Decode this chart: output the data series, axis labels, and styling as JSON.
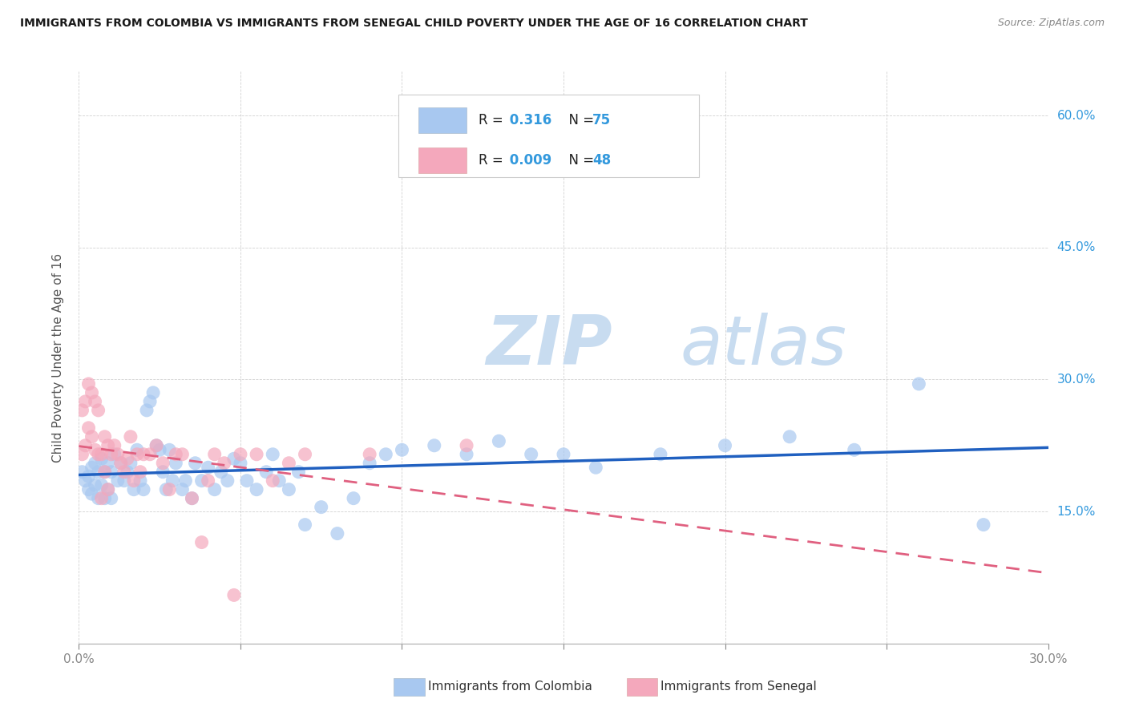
{
  "title": "IMMIGRANTS FROM COLOMBIA VS IMMIGRANTS FROM SENEGAL CHILD POVERTY UNDER THE AGE OF 16 CORRELATION CHART",
  "source": "Source: ZipAtlas.com",
  "ylabel": "Child Poverty Under the Age of 16",
  "xlim": [
    0.0,
    0.3
  ],
  "ylim": [
    0.0,
    0.65
  ],
  "yticks": [
    0.0,
    0.15,
    0.3,
    0.45,
    0.6
  ],
  "ytick_labels": [
    "",
    "15.0%",
    "30.0%",
    "45.0%",
    "60.0%"
  ],
  "xticks": [
    0.0,
    0.05,
    0.1,
    0.15,
    0.2,
    0.25,
    0.3
  ],
  "colombia_color": "#A8C8F0",
  "senegal_color": "#F4A8BC",
  "colombia_R": 0.316,
  "colombia_N": 75,
  "senegal_R": 0.009,
  "senegal_N": 48,
  "colombia_line_color": "#2060C0",
  "senegal_line_color": "#E06080",
  "watermark_zip": "ZIP",
  "watermark_atlas": "atlas",
  "legend_label_col": "Immigrants from Colombia",
  "legend_label_sen": "Immigrants from Senegal",
  "colombia_x": [
    0.001,
    0.002,
    0.003,
    0.003,
    0.004,
    0.004,
    0.005,
    0.005,
    0.006,
    0.006,
    0.007,
    0.007,
    0.008,
    0.008,
    0.009,
    0.009,
    0.01,
    0.01,
    0.011,
    0.012,
    0.013,
    0.014,
    0.015,
    0.016,
    0.017,
    0.018,
    0.019,
    0.02,
    0.021,
    0.022,
    0.023,
    0.024,
    0.025,
    0.026,
    0.027,
    0.028,
    0.029,
    0.03,
    0.032,
    0.033,
    0.035,
    0.036,
    0.038,
    0.04,
    0.042,
    0.044,
    0.046,
    0.048,
    0.05,
    0.052,
    0.055,
    0.058,
    0.06,
    0.062,
    0.065,
    0.068,
    0.07,
    0.075,
    0.08,
    0.085,
    0.09,
    0.095,
    0.1,
    0.11,
    0.12,
    0.13,
    0.14,
    0.15,
    0.16,
    0.18,
    0.2,
    0.22,
    0.24,
    0.26,
    0.28
  ],
  "colombia_y": [
    0.195,
    0.185,
    0.19,
    0.175,
    0.2,
    0.17,
    0.205,
    0.18,
    0.195,
    0.165,
    0.21,
    0.18,
    0.195,
    0.165,
    0.205,
    0.175,
    0.195,
    0.165,
    0.215,
    0.185,
    0.205,
    0.185,
    0.195,
    0.205,
    0.175,
    0.22,
    0.185,
    0.175,
    0.265,
    0.275,
    0.285,
    0.225,
    0.22,
    0.195,
    0.175,
    0.22,
    0.185,
    0.205,
    0.175,
    0.185,
    0.165,
    0.205,
    0.185,
    0.2,
    0.175,
    0.195,
    0.185,
    0.21,
    0.205,
    0.185,
    0.175,
    0.195,
    0.215,
    0.185,
    0.175,
    0.195,
    0.135,
    0.155,
    0.125,
    0.165,
    0.205,
    0.215,
    0.22,
    0.225,
    0.215,
    0.23,
    0.215,
    0.215,
    0.2,
    0.215,
    0.225,
    0.235,
    0.22,
    0.295,
    0.135
  ],
  "senegal_x": [
    0.001,
    0.001,
    0.002,
    0.002,
    0.003,
    0.003,
    0.004,
    0.004,
    0.005,
    0.005,
    0.006,
    0.006,
    0.007,
    0.007,
    0.008,
    0.008,
    0.009,
    0.009,
    0.01,
    0.011,
    0.012,
    0.013,
    0.014,
    0.015,
    0.016,
    0.017,
    0.018,
    0.019,
    0.02,
    0.022,
    0.024,
    0.026,
    0.028,
    0.03,
    0.032,
    0.035,
    0.038,
    0.04,
    0.042,
    0.045,
    0.048,
    0.05,
    0.055,
    0.06,
    0.065,
    0.07,
    0.09,
    0.12
  ],
  "senegal_y": [
    0.265,
    0.215,
    0.275,
    0.225,
    0.295,
    0.245,
    0.285,
    0.235,
    0.275,
    0.22,
    0.265,
    0.215,
    0.215,
    0.165,
    0.235,
    0.195,
    0.225,
    0.175,
    0.215,
    0.225,
    0.215,
    0.205,
    0.195,
    0.21,
    0.235,
    0.185,
    0.215,
    0.195,
    0.215,
    0.215,
    0.225,
    0.205,
    0.175,
    0.215,
    0.215,
    0.165,
    0.115,
    0.185,
    0.215,
    0.205,
    0.055,
    0.215,
    0.215,
    0.185,
    0.205,
    0.215,
    0.215,
    0.225
  ]
}
